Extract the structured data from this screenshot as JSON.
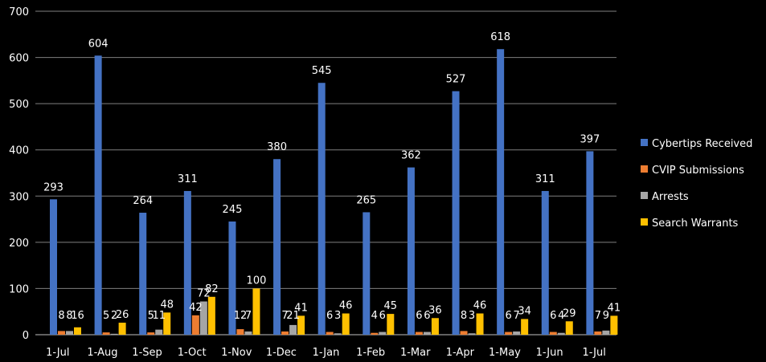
{
  "chart_data": {
    "type": "bar",
    "categories": [
      "1-Jul",
      "1-Aug",
      "1-Sep",
      "1-Oct",
      "1-Nov",
      "1-Dec",
      "1-Jan",
      "1-Feb",
      "1-Mar",
      "1-Apr",
      "1-May",
      "1-Jun",
      "1-Jul"
    ],
    "series": [
      {
        "name": "Cybertips Received",
        "color": "#4472C4",
        "values": [
          293,
          604,
          264,
          311,
          245,
          380,
          545,
          265,
          362,
          527,
          618,
          311,
          397
        ],
        "labels": [
          "293",
          "604",
          "264",
          "311",
          "245",
          "380",
          "545",
          "265",
          "362",
          "527",
          "618",
          "311",
          "397"
        ]
      },
      {
        "name": "CVIP Submissions",
        "color": "#ED7D31",
        "values": [
          8,
          5,
          5,
          42,
          12,
          7,
          6,
          4,
          6,
          8,
          6,
          6,
          7
        ],
        "labels": [
          "8",
          "5",
          "5",
          "42",
          "12",
          "7",
          "6",
          "4",
          "6",
          "8",
          "6",
          "6",
          "7"
        ]
      },
      {
        "name": "Arrests",
        "color": "#A5A5A5",
        "values": [
          8,
          2,
          11,
          72,
          7,
          21,
          3,
          6,
          6,
          3,
          7,
          4,
          9
        ],
        "labels": [
          "8",
          "2",
          "11",
          "72",
          "7",
          "21",
          "3",
          "6",
          "6",
          "3",
          "7",
          "4",
          "9"
        ]
      },
      {
        "name": "Search Warrants",
        "color": "#FFC000",
        "values": [
          16,
          26,
          48,
          82,
          100,
          41,
          46,
          45,
          36,
          46,
          34,
          29,
          41
        ],
        "labels": [
          "16",
          "26",
          "48",
          "82",
          "100",
          "41",
          "46",
          "45",
          "36",
          "46",
          "34",
          "29",
          "41"
        ]
      }
    ],
    "title": "",
    "xlabel": "",
    "ylabel": "",
    "ylim": [
      0,
      700
    ],
    "yticks": [
      0,
      100,
      200,
      300,
      400,
      500,
      600,
      700
    ],
    "grid": true,
    "legend_position": "right"
  }
}
